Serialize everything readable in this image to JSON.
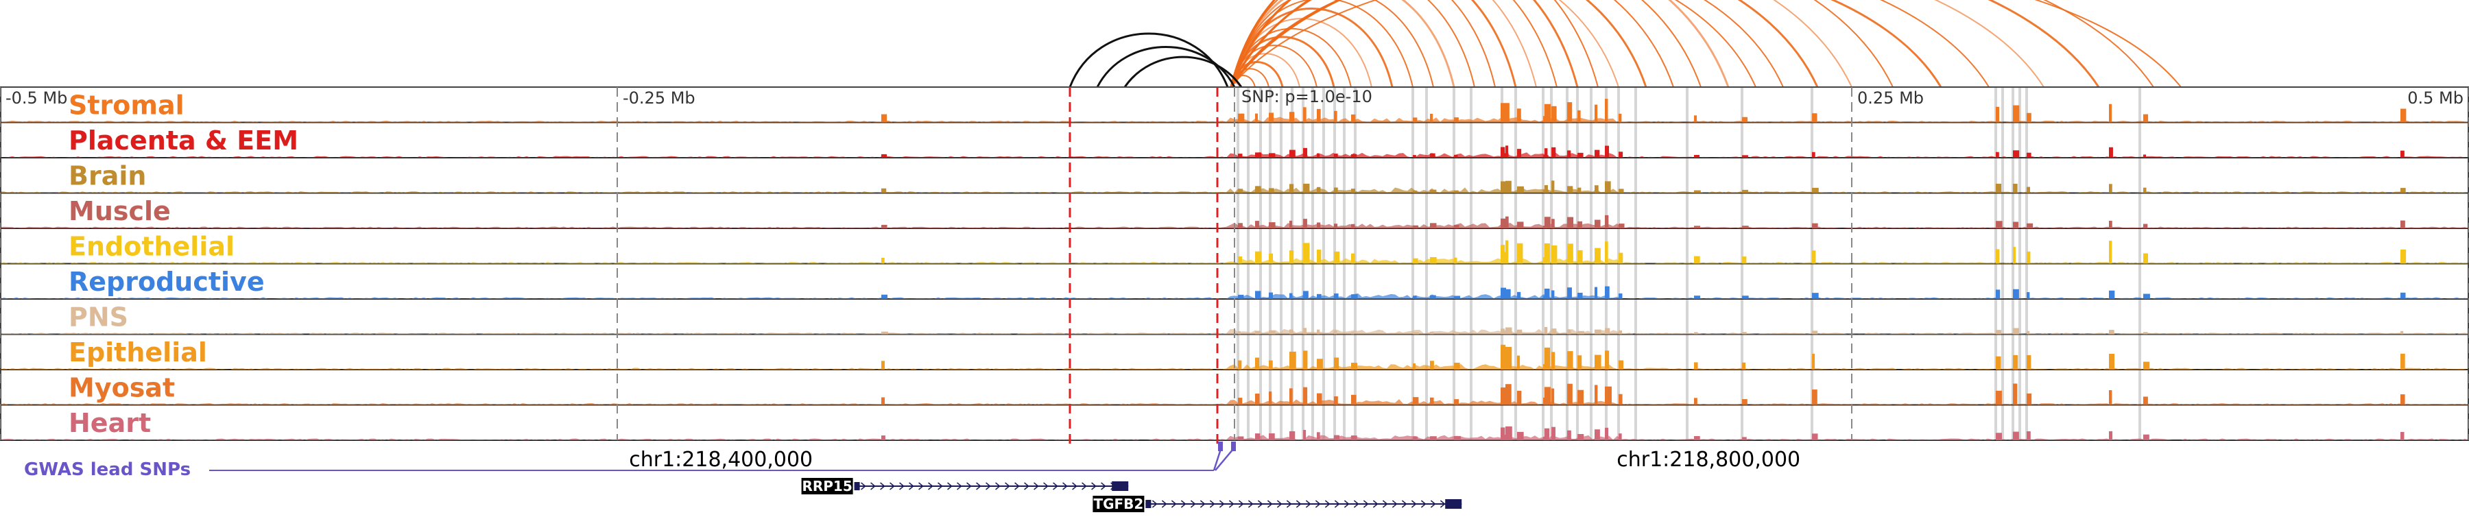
{
  "axis": {
    "region_start": 218108000,
    "region_end": 219108000,
    "center": 218608000,
    "ticks": [
      {
        "label": "-0.5 Mb",
        "pos": 218108000
      },
      {
        "label": "-0.25 Mb",
        "pos": 218358000
      },
      {
        "label": "0.25 Mb",
        "pos": 218858000
      },
      {
        "label": "0.5 Mb",
        "pos": 219108000
      }
    ],
    "snp_label": "SNP: p=1.0e-10",
    "coordinate_labels": [
      {
        "label": "chr1:218,400,000",
        "pos": 218400000
      },
      {
        "label": "chr1:218,800,000",
        "pos": 218800000
      }
    ]
  },
  "tracks": [
    {
      "name": "Stromal",
      "color": "#f07820"
    },
    {
      "name": "Placenta & EEM",
      "color": "#dd1c1c"
    },
    {
      "name": "Brain",
      "color": "#bf8c30"
    },
    {
      "name": "Muscle",
      "color": "#c0605a"
    },
    {
      "name": "Endothelial",
      "color": "#f5c518"
    },
    {
      "name": "Reproductive",
      "color": "#3b82e0"
    },
    {
      "name": "PNS",
      "color": "#ddbb99"
    },
    {
      "name": "Epithelial",
      "color": "#f09a20"
    },
    {
      "name": "Myosat",
      "color": "#e8762a"
    },
    {
      "name": "Heart",
      "color": "#d06878"
    }
  ],
  "gwas": {
    "label": "GWAS lead SNPs",
    "color": "#6a55c8"
  },
  "genes": [
    {
      "name": "RRP15",
      "start": 218454000,
      "end": 218565000,
      "strand": "+"
    },
    {
      "name": "TGFB2",
      "start": 218572000,
      "end": 218700000,
      "strand": "+"
    }
  ],
  "colors": {
    "arc_orange": "#ee6a1a",
    "arc_black": "#111111",
    "dashed_red": "#e02020",
    "highlight_gray": "#cccccc",
    "gene_box": "#1a1a5a"
  }
}
